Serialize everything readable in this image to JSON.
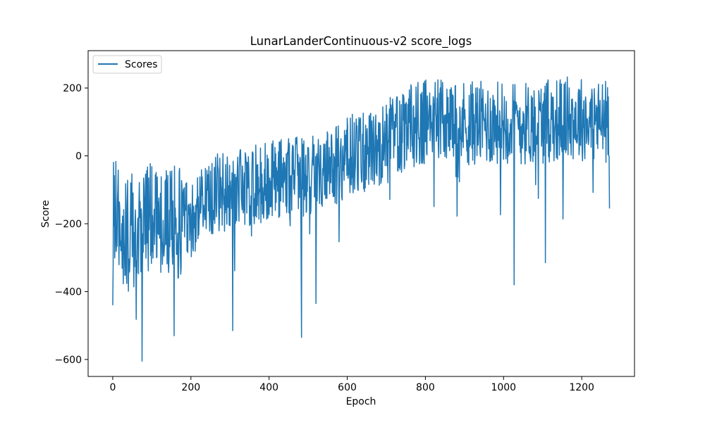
{
  "chart_data": {
    "type": "line",
    "title": "LunarLanderContinuous-v2 score_logs",
    "xlabel": "Epoch",
    "ylabel": "Score",
    "xlim": [
      -63,
      1335
    ],
    "ylim": [
      -650,
      310
    ],
    "x_ticks": [
      0,
      200,
      400,
      600,
      800,
      1000,
      1200
    ],
    "y_ticks": [
      -600,
      -400,
      -200,
      0,
      200
    ],
    "x_tick_labels": [
      "0",
      "200",
      "400",
      "600",
      "800",
      "1000",
      "1200"
    ],
    "y_tick_labels": [
      "−600",
      "−400",
      "−200",
      "0",
      "200"
    ],
    "legend": {
      "placement": "upper-left",
      "entries": [
        "Scores"
      ]
    },
    "grid": false,
    "series": [
      {
        "name": "Scores",
        "color": "#1f77b4",
        "n_points": 1272,
        "anchor_points": [
          {
            "x": 0,
            "y": -440
          },
          {
            "x": 10,
            "y": -170
          },
          {
            "x": 25,
            "y": -250
          },
          {
            "x": 50,
            "y": -220
          },
          {
            "x": 75,
            "y": -605
          },
          {
            "x": 100,
            "y": -180
          },
          {
            "x": 150,
            "y": -200
          },
          {
            "x": 157,
            "y": -530
          },
          {
            "x": 200,
            "y": -180
          },
          {
            "x": 250,
            "y": -120
          },
          {
            "x": 300,
            "y": -100
          },
          {
            "x": 307,
            "y": -515
          },
          {
            "x": 350,
            "y": -90
          },
          {
            "x": 400,
            "y": -70
          },
          {
            "x": 450,
            "y": -60
          },
          {
            "x": 483,
            "y": -535
          },
          {
            "x": 500,
            "y": -60
          },
          {
            "x": 520,
            "y": -435
          },
          {
            "x": 550,
            "y": -40
          },
          {
            "x": 600,
            "y": 0
          },
          {
            "x": 650,
            "y": 10
          },
          {
            "x": 700,
            "y": 40
          },
          {
            "x": 750,
            "y": 80
          },
          {
            "x": 800,
            "y": 100
          },
          {
            "x": 850,
            "y": 110
          },
          {
            "x": 900,
            "y": 100
          },
          {
            "x": 950,
            "y": 95
          },
          {
            "x": 1000,
            "y": 100
          },
          {
            "x": 1027,
            "y": -380
          },
          {
            "x": 1050,
            "y": 95
          },
          {
            "x": 1100,
            "y": 100
          },
          {
            "x": 1107,
            "y": -315
          },
          {
            "x": 1150,
            "y": 110
          },
          {
            "x": 1200,
            "y": 110
          },
          {
            "x": 1250,
            "y": 100
          },
          {
            "x": 1271,
            "y": -155
          }
        ]
      }
    ]
  }
}
